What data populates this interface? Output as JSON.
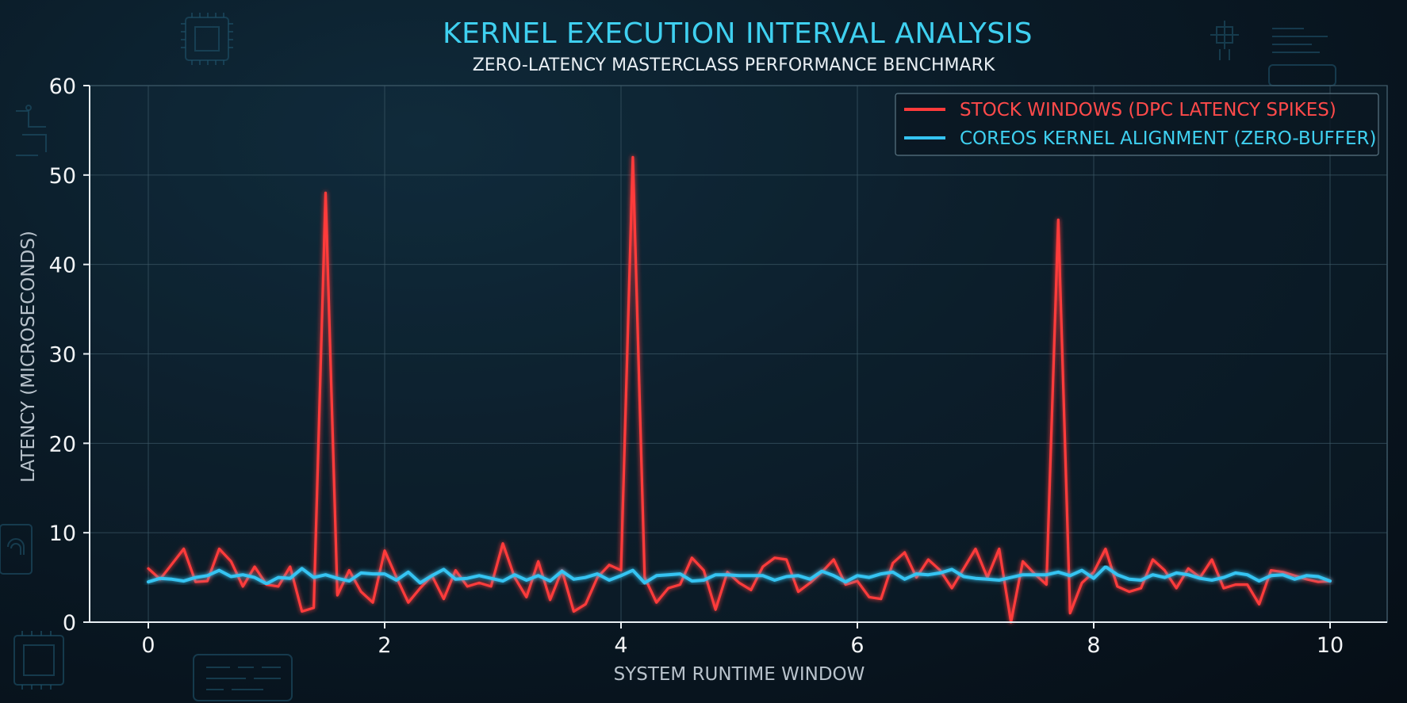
{
  "chart_data": {
    "type": "line",
    "title": "KERNEL EXECUTION INTERVAL ANALYSIS",
    "subtitle": "ZERO-LATENCY MASTERCLASS PERFORMANCE BENCHMARK",
    "xlabel": "SYSTEM RUNTIME WINDOW",
    "ylabel": "LATENCY (MICROSECONDS)",
    "xlim": [
      0,
      10
    ],
    "ylim": [
      0,
      60
    ],
    "xticks": [
      "0",
      "2",
      "4",
      "6",
      "8",
      "10"
    ],
    "yticks": [
      "0",
      "10",
      "20",
      "30",
      "40",
      "50",
      "60"
    ],
    "grid": true,
    "legend_position": "top-right",
    "x": [
      0,
      0.1,
      0.2,
      0.3,
      0.4,
      0.5,
      0.6,
      0.7,
      0.8,
      0.9,
      1.0,
      1.1,
      1.2,
      1.3,
      1.4,
      1.5,
      1.6,
      1.7,
      1.8,
      1.9,
      2.0,
      2.1,
      2.2,
      2.3,
      2.4,
      2.5,
      2.6,
      2.7,
      2.8,
      2.9,
      3.0,
      3.1,
      3.2,
      3.3,
      3.4,
      3.5,
      3.6,
      3.7,
      3.8,
      3.9,
      4.0,
      4.1,
      4.2,
      4.3,
      4.4,
      4.5,
      4.6,
      4.7,
      4.8,
      4.9,
      5.0,
      5.1,
      5.2,
      5.3,
      5.4,
      5.5,
      5.6,
      5.7,
      5.8,
      5.9,
      6.0,
      6.1,
      6.2,
      6.3,
      6.4,
      6.5,
      6.6,
      6.7,
      6.8,
      6.9,
      7.0,
      7.1,
      7.2,
      7.3,
      7.4,
      7.5,
      7.6,
      7.7,
      7.8,
      7.9,
      8.0,
      8.1,
      8.2,
      8.3,
      8.4,
      8.5,
      8.6,
      8.7,
      8.8,
      8.9,
      9.0,
      9.1,
      9.2,
      9.3,
      9.4,
      9.5,
      9.6,
      9.7,
      9.8,
      9.9,
      10.0
    ],
    "series": [
      {
        "name": "STOCK WINDOWS (DPC LATENCY SPIKES)",
        "color": "#ff3b3b",
        "values": [
          6.0,
          4.8,
          6.5,
          8.2,
          4.5,
          4.6,
          8.2,
          6.8,
          4.0,
          6.2,
          4.2,
          4.0,
          6.2,
          1.2,
          1.6,
          48.0,
          3.0,
          5.8,
          3.4,
          2.2,
          8.0,
          5.0,
          2.2,
          3.8,
          5.2,
          2.6,
          5.8,
          4.0,
          4.4,
          4.0,
          8.8,
          5.0,
          2.8,
          6.8,
          2.5,
          5.8,
          1.2,
          2.0,
          5.0,
          6.4,
          5.8,
          52.0,
          5.0,
          2.2,
          3.8,
          4.2,
          7.2,
          5.8,
          1.4,
          5.6,
          4.4,
          3.6,
          6.2,
          7.2,
          7.0,
          3.4,
          4.4,
          5.6,
          7.0,
          4.2,
          4.6,
          2.8,
          2.6,
          6.6,
          7.8,
          5.0,
          7.0,
          5.8,
          3.8,
          6.0,
          8.2,
          5.0,
          8.2,
          0.0,
          6.8,
          5.4,
          4.2,
          45.0,
          1.0,
          4.4,
          5.6,
          8.2,
          4.0,
          3.4,
          3.8,
          7.0,
          5.8,
          3.8,
          6.0,
          5.0,
          7.0,
          3.8,
          4.2,
          4.2,
          2.0,
          5.8,
          5.6,
          5.2,
          4.8,
          4.5,
          4.6
        ]
      },
      {
        "name": "COREOS KERNEL ALIGNMENT (ZERO-BUFFER)",
        "color": "#35c4f2",
        "values": [
          4.5,
          4.9,
          4.8,
          4.6,
          5.0,
          5.2,
          5.8,
          5.1,
          5.3,
          5.0,
          4.3,
          5.0,
          4.9,
          6.0,
          5.0,
          5.3,
          4.9,
          4.6,
          5.5,
          5.4,
          5.4,
          4.7,
          5.6,
          4.4,
          5.2,
          5.9,
          4.8,
          4.9,
          5.2,
          4.9,
          4.6,
          5.3,
          4.7,
          5.2,
          4.6,
          5.7,
          4.8,
          5.0,
          5.4,
          4.7,
          5.2,
          5.8,
          4.4,
          5.2,
          5.3,
          5.4,
          4.6,
          4.7,
          5.3,
          5.3,
          5.2,
          5.2,
          5.2,
          4.7,
          5.1,
          5.2,
          4.8,
          5.7,
          5.2,
          4.5,
          5.2,
          5.0,
          5.4,
          5.6,
          4.8,
          5.4,
          5.3,
          5.5,
          5.9,
          5.1,
          4.9,
          4.8,
          4.7,
          5.0,
          5.3,
          5.3,
          5.3,
          5.6,
          5.2,
          5.8,
          4.9,
          6.2,
          5.3,
          4.8,
          4.7,
          5.3,
          5.0,
          5.5,
          5.3,
          4.9,
          4.7,
          5.0,
          5.5,
          5.3,
          4.6,
          5.2,
          5.3,
          4.8,
          5.2,
          5.1,
          4.6
        ]
      }
    ]
  }
}
